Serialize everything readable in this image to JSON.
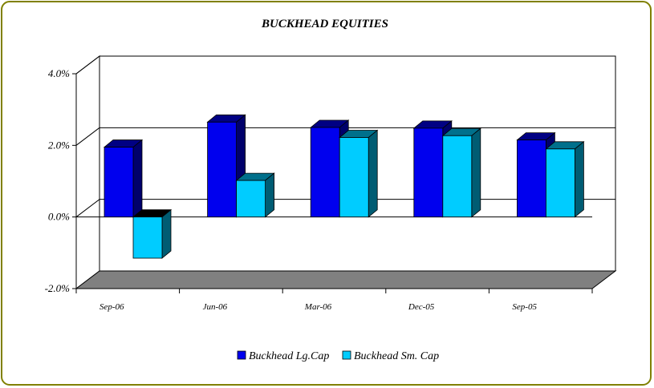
{
  "chart_data": {
    "type": "bar",
    "title": "BUCKHEAD EQUITIES",
    "xlabel": "",
    "ylabel": "",
    "categories": [
      "Sep-06",
      "Jun-06",
      "Mar-06",
      "Dec-05",
      "Sep-05"
    ],
    "series": [
      {
        "name": "Buckhead Lg.Cap",
        "values": [
          1.95,
          2.65,
          2.5,
          2.48,
          2.15
        ],
        "color": "#0000ee"
      },
      {
        "name": "Buckhead Sm. Cap",
        "values": [
          -1.15,
          1.02,
          2.22,
          2.27,
          1.9
        ],
        "color": "#00ccff"
      }
    ],
    "ylim": [
      -2.0,
      4.0
    ],
    "yticks": [
      "4.0%",
      "2.0%",
      "0.0%",
      "-2.0%"
    ],
    "ytick_values": [
      4.0,
      2.0,
      0.0,
      -2.0
    ],
    "grid": true,
    "legend_position": "bottom",
    "colors": {
      "floor": "#808080",
      "frame": "#808000"
    }
  }
}
